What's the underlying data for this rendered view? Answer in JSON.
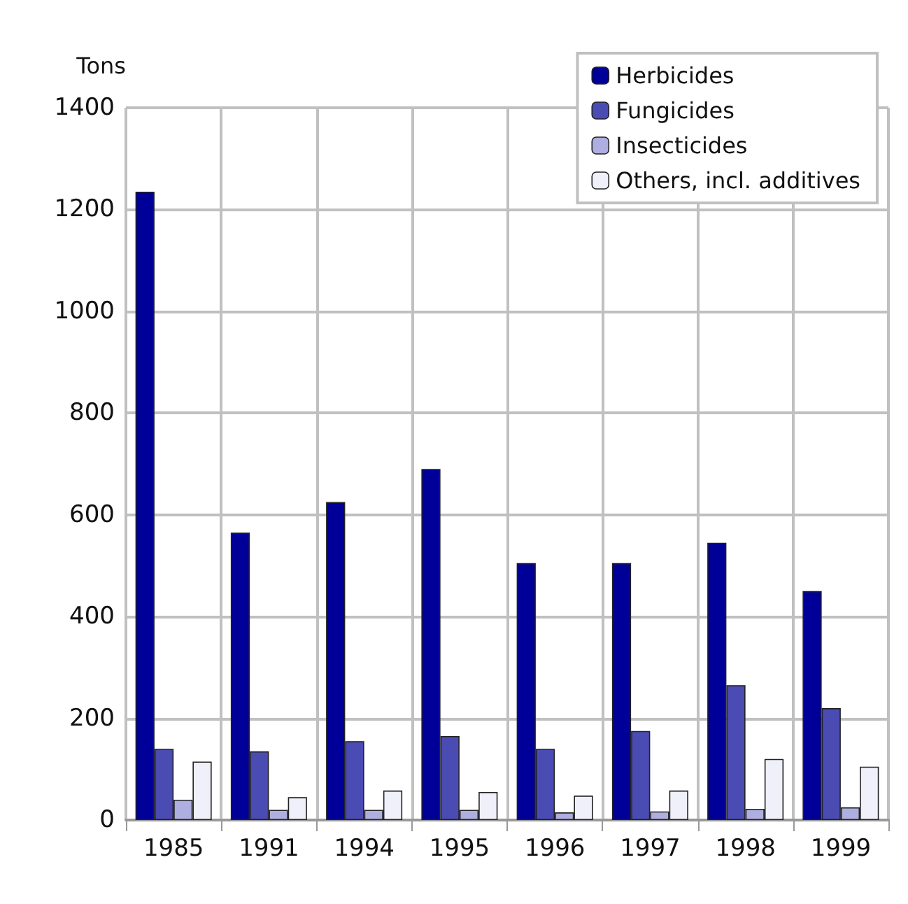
{
  "chart_data": {
    "type": "bar",
    "ylabel": "Tons",
    "categories": [
      "1985",
      "1991",
      "1994",
      "1995",
      "1996",
      "1997",
      "1998",
      "1999"
    ],
    "series": [
      {
        "name": "Herbicides",
        "color": "#000099",
        "values": [
          1235,
          565,
          625,
          690,
          505,
          505,
          545,
          450
        ]
      },
      {
        "name": "Fungicides",
        "color": "#4b4bb4",
        "values": [
          140,
          135,
          155,
          165,
          140,
          175,
          265,
          220
        ]
      },
      {
        "name": "Insecticides",
        "color": "#aeaee0",
        "values": [
          40,
          20,
          20,
          20,
          15,
          17,
          22,
          25
        ]
      },
      {
        "name": "Others, incl. additives",
        "color": "#f0f0fa",
        "values": [
          115,
          45,
          58,
          55,
          48,
          58,
          120,
          105
        ]
      }
    ],
    "ylim": [
      0,
      1400
    ],
    "yticks": [
      0,
      200,
      400,
      600,
      800,
      1000,
      1200,
      1400
    ],
    "grid": true,
    "legend": "top right"
  }
}
